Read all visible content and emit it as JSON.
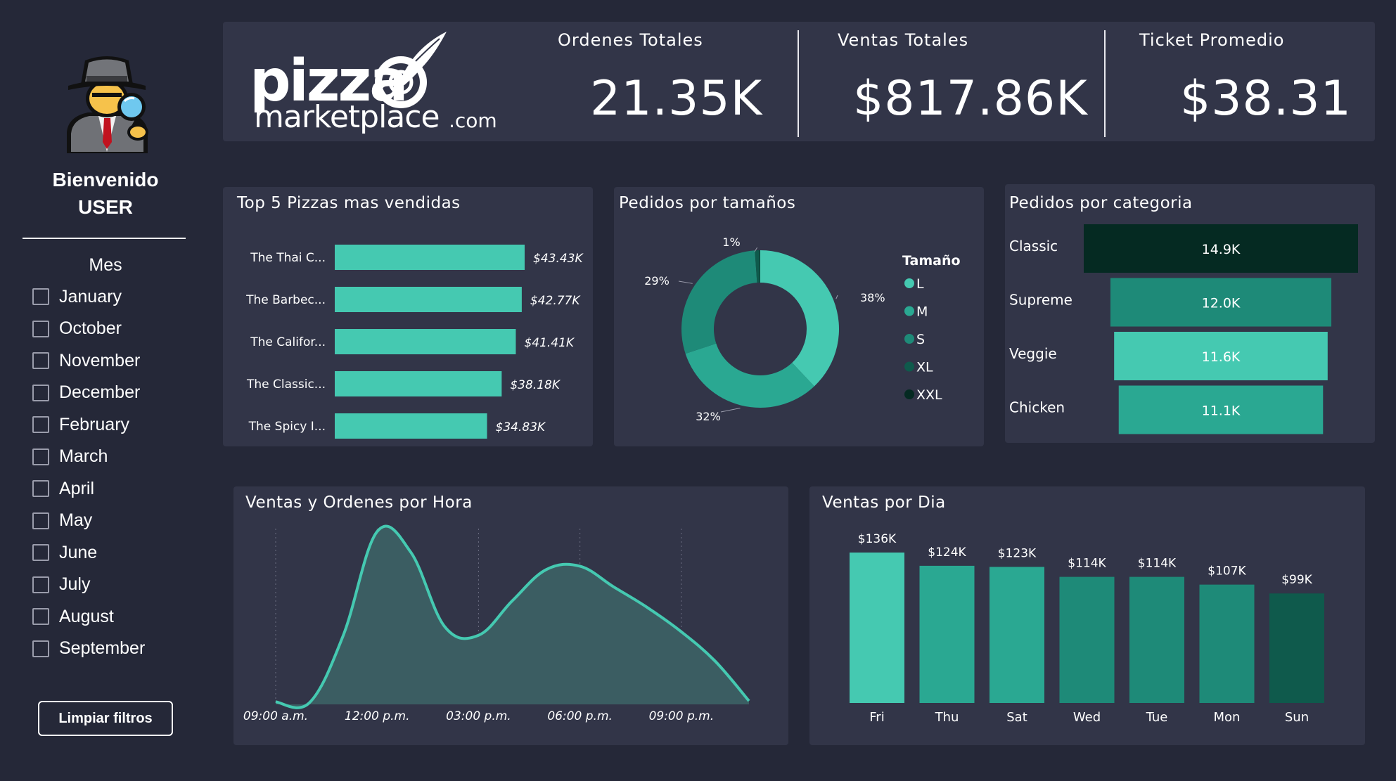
{
  "sidebar": {
    "avatar_icon": "detective-icon",
    "welcome_line1": "Bienvenido",
    "welcome_line2": "USER",
    "month_title": "Mes",
    "months": [
      "January",
      "October",
      "November",
      "December",
      "February",
      "March",
      "April",
      "May",
      "June",
      "July",
      "August",
      "September"
    ],
    "clear_button": "Limpiar filtros"
  },
  "header": {
    "logo_text1": "pizza",
    "logo_text2": "marketplace",
    "logo_text3": ".com",
    "kpis": [
      {
        "title": "Ordenes Totales",
        "value": "21.35K"
      },
      {
        "title": "Ventas Totales",
        "value": "$817.86K"
      },
      {
        "title": "Ticket Promedio",
        "value": "$38.31"
      }
    ]
  },
  "colors": {
    "background": "#252838",
    "panel": "#323548",
    "teal_light": "#45c9b1",
    "teal_mid": "#2aa892",
    "teal_dark": "#1e8a78",
    "teal_darker": "#0f5a4c",
    "teal_darkest": "#052a22"
  },
  "chart_data": [
    {
      "id": "top-pizzas",
      "type": "bar",
      "orientation": "horizontal",
      "title": "Top 5 Pizzas mas vendidas",
      "categories": [
        "The Thai C...",
        "The Barbec...",
        "The Califor...",
        "The Classic...",
        "The Spicy I..."
      ],
      "values": [
        43.43,
        42.77,
        41.41,
        38.18,
        34.83
      ],
      "labels": [
        "$43.43K",
        "$42.77K",
        "$41.41K",
        "$38.18K",
        "$34.83K"
      ]
    },
    {
      "id": "sizes",
      "type": "pie",
      "donut": true,
      "title": "Pedidos por tamaños",
      "legend_title": "Tamaño",
      "legend_position": "right",
      "categories": [
        "L",
        "M",
        "S",
        "XL",
        "XXL"
      ],
      "values": [
        38,
        32,
        29,
        1,
        0.1
      ],
      "labels": [
        "38%",
        "32%",
        "29%",
        "1%",
        ""
      ],
      "colors": [
        "#45c9b1",
        "#2aa892",
        "#1e8a78",
        "#0f5a4c",
        "#052a22"
      ]
    },
    {
      "id": "categories",
      "type": "bar",
      "orientation": "horizontal",
      "title": "Pedidos por categoria",
      "categories": [
        "Classic",
        "Supreme",
        "Veggie",
        "Chicken"
      ],
      "values": [
        14.9,
        12.0,
        11.6,
        11.1
      ],
      "labels": [
        "14.9K",
        "12.0K",
        "11.6K",
        "11.1K"
      ],
      "colors": [
        "#052a22",
        "#1e8a78",
        "#45c9b1",
        "#2aa892"
      ]
    },
    {
      "id": "hourly",
      "type": "area",
      "title": "Ventas y Ordenes por Hora",
      "x": [
        9,
        10,
        11,
        12,
        13,
        14,
        15,
        16,
        17,
        18,
        19,
        20,
        21,
        22,
        23
      ],
      "y": [
        1.5,
        1.0,
        40,
        100,
        88,
        45,
        40,
        60,
        78,
        80,
        68,
        56,
        42,
        25,
        2
      ],
      "xticks": [
        "09:00 a.m.",
        "12:00 p.m.",
        "03:00 p.m.",
        "06:00 p.m.",
        "09:00 p.m."
      ],
      "xtick_values": [
        9,
        12,
        15,
        18,
        21
      ],
      "xlim": [
        9,
        23
      ],
      "ylim": [
        0,
        105
      ],
      "grid": "vertical dotted"
    },
    {
      "id": "daily",
      "type": "bar",
      "title": "Ventas por Dia",
      "categories": [
        "Fri",
        "Thu",
        "Sat",
        "Wed",
        "Tue",
        "Mon",
        "Sun"
      ],
      "values": [
        136,
        124,
        123,
        114,
        114,
        107,
        99
      ],
      "labels": [
        "$136K",
        "$124K",
        "$123K",
        "$114K",
        "$114K",
        "$107K",
        "$99K"
      ],
      "colors": [
        "#45c9b1",
        "#2aa892",
        "#2aa892",
        "#1e8a78",
        "#1e8a78",
        "#1e8a78",
        "#0f5a4c"
      ]
    }
  ]
}
